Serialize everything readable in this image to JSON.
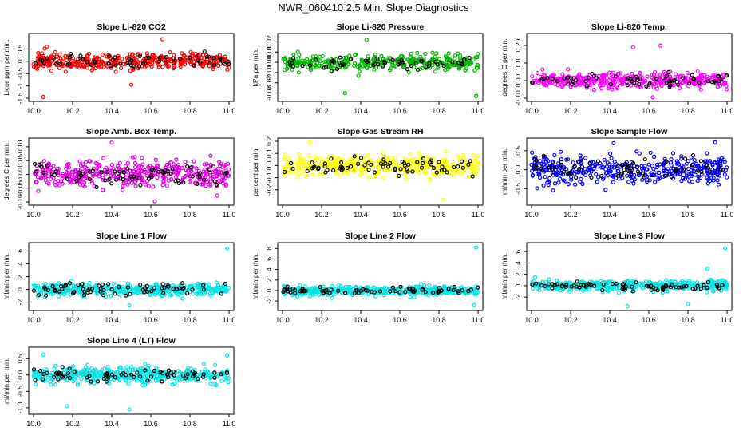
{
  "title": "NWR_060410  2.5 Min. Slope Diagnostics",
  "colors": {
    "black_points": "#000000",
    "axis": "#000000"
  },
  "chart_data": [
    {
      "type": "scatter",
      "title": "Slope Li-820 CO2",
      "ylabel": "Licor ppm per min.",
      "xlim": [
        10.0,
        11.0
      ],
      "ylim": [
        -1.5,
        1.0
      ],
      "xticks": [
        10.0,
        10.2,
        10.4,
        10.6,
        10.8,
        11.0
      ],
      "xtick_labels": [
        "10.0",
        "10.2",
        "10.4",
        "10.6",
        "10.8",
        "11.0"
      ],
      "yticks": [
        -1.5,
        -1.0,
        -0.5,
        0.0,
        0.5
      ],
      "ytick_labels": [
        "-1.5",
        "-1",
        "-0.5",
        "0",
        "0.5"
      ],
      "grid": false,
      "color": "#ff0000",
      "center": 0.0,
      "spread": 0.28,
      "count": 380,
      "seed": 11,
      "outliers": [
        [
          10.05,
          -1.45
        ],
        [
          10.66,
          0.9
        ],
        [
          10.5,
          -0.95
        ]
      ]
    },
    {
      "type": "scatter",
      "title": "Slope Li-820 Pressure",
      "ylabel": "kPa per min.",
      "xlim": [
        10.0,
        11.0
      ],
      "ylim": [
        -0.035,
        0.025
      ],
      "xticks": [
        10.0,
        10.2,
        10.4,
        10.6,
        10.8,
        11.0
      ],
      "xtick_labels": [
        "10.0",
        "10.2",
        "10.4",
        "10.6",
        "10.8",
        "11.0"
      ],
      "yticks": [
        -0.03,
        -0.02,
        -0.01,
        0.0,
        0.01,
        0.02
      ],
      "ytick_labels": [
        "-0.03",
        "-0.02",
        "-0.01",
        "0.00",
        "0.01",
        "0.02"
      ],
      "grid": false,
      "color": "#00b400",
      "center": 0.0,
      "spread": 0.006,
      "count": 340,
      "seed": 23,
      "outliers": [
        [
          10.32,
          -0.03
        ],
        [
          10.99,
          -0.033
        ],
        [
          10.43,
          0.022
        ]
      ]
    },
    {
      "type": "scatter",
      "title": "Slope Li-820 Temp.",
      "ylabel": "degrees C per min.",
      "xlim": [
        10.0,
        11.0
      ],
      "ylim": [
        -0.1,
        0.25
      ],
      "xticks": [
        10.0,
        10.2,
        10.4,
        10.6,
        10.8,
        11.0
      ],
      "xtick_labels": [
        "10.0",
        "10.2",
        "10.4",
        "10.6",
        "10.8",
        "11.0"
      ],
      "yticks": [
        -0.1,
        0.0,
        0.1,
        0.2
      ],
      "ytick_labels": [
        "-0.10",
        "0.00",
        "0.10",
        "0.20"
      ],
      "grid": false,
      "color": "#ff00ff",
      "center": 0.0,
      "spread": 0.035,
      "count": 380,
      "seed": 37,
      "outliers": [
        [
          10.62,
          -0.095
        ],
        [
          10.52,
          0.19
        ],
        [
          10.66,
          0.2
        ]
      ]
    },
    {
      "type": "scatter",
      "title": "Slope Amb. Box Temp.",
      "ylabel": "degrees C per min.",
      "xlim": [
        10.0,
        11.0
      ],
      "ylim": [
        -0.1,
        0.12
      ],
      "xticks": [
        10.0,
        10.2,
        10.4,
        10.6,
        10.8,
        11.0
      ],
      "xtick_labels": [
        "10.0",
        "10.2",
        "10.4",
        "10.6",
        "10.8",
        "11.0"
      ],
      "yticks": [
        -0.1,
        -0.05,
        0.0,
        0.05,
        0.1
      ],
      "ytick_labels": [
        "-0.10",
        "-0.05",
        "0.00",
        "0.05",
        "0.10"
      ],
      "grid": false,
      "color": "#e000e0",
      "center": 0.0,
      "spread": 0.04,
      "count": 420,
      "seed": 41,
      "outliers": [
        [
          10.4,
          0.115
        ],
        [
          10.62,
          -0.098
        ]
      ]
    },
    {
      "type": "scatter",
      "title": "Slope Gas Stream RH",
      "ylabel": "percent per min.",
      "xlim": [
        10.0,
        11.0
      ],
      "ylim": [
        -0.3,
        0.2
      ],
      "xticks": [
        10.0,
        10.2,
        10.4,
        10.6,
        10.8,
        11.0
      ],
      "xtick_labels": [
        "10.0",
        "10.2",
        "10.4",
        "10.6",
        "10.8",
        "11.0"
      ],
      "yticks": [
        -0.2,
        -0.1,
        0.0,
        0.1,
        0.2
      ],
      "ytick_labels": [
        "-0.2",
        "-0.1",
        "0.0",
        "0.1",
        "0.2"
      ],
      "grid": false,
      "color": "#ffff00",
      "center": 0.0,
      "spread": 0.07,
      "count": 420,
      "seed": 53,
      "outliers": [
        [
          10.82,
          -0.28
        ],
        [
          10.14,
          0.19
        ]
      ]
    },
    {
      "type": "scatter",
      "title": "Slope Sample Flow",
      "ylabel": "ml/min per min.",
      "xlim": [
        10.0,
        11.0
      ],
      "ylim": [
        -0.85,
        0.75
      ],
      "xticks": [
        10.0,
        10.2,
        10.4,
        10.6,
        10.8,
        11.0
      ],
      "xtick_labels": [
        "10.0",
        "10.2",
        "10.4",
        "10.6",
        "10.8",
        "11.0"
      ],
      "yticks": [
        -0.5,
        0.0,
        0.5
      ],
      "ytick_labels": [
        "-0.5",
        "0.0",
        "0.5"
      ],
      "grid": false,
      "color": "#0000ff",
      "center": 0.0,
      "spread": 0.28,
      "count": 380,
      "seed": 67,
      "outliers": [
        [
          10.42,
          0.7
        ],
        [
          10.94,
          0.72
        ]
      ]
    },
    {
      "type": "scatter",
      "title": "Slope Line 1 Flow",
      "ylabel": "ml/min per min.",
      "xlim": [
        10.0,
        11.0
      ],
      "ylim": [
        -2.8,
        6.8
      ],
      "xticks": [
        10.0,
        10.2,
        10.4,
        10.6,
        10.8,
        11.0
      ],
      "xtick_labels": [
        "10.0",
        "10.2",
        "10.4",
        "10.6",
        "10.8",
        "11.0"
      ],
      "yticks": [
        -2,
        0,
        2,
        4,
        6
      ],
      "ytick_labels": [
        "-2",
        "0",
        "2",
        "4",
        "6"
      ],
      "grid": false,
      "color": "#00e5e5",
      "center": 0.0,
      "spread": 0.75,
      "count": 420,
      "seed": 71,
      "outliers": [
        [
          10.99,
          6.4
        ],
        [
          10.49,
          -2.5
        ]
      ]
    },
    {
      "type": "scatter",
      "title": "Slope Line 2 Flow",
      "ylabel": "ml/min per min.",
      "xlim": [
        10.0,
        11.0
      ],
      "ylim": [
        -3.2,
        8.5
      ],
      "xticks": [
        10.0,
        10.2,
        10.4,
        10.6,
        10.8,
        11.0
      ],
      "xtick_labels": [
        "10.0",
        "10.2",
        "10.4",
        "10.6",
        "10.8",
        "11.0"
      ],
      "yticks": [
        -2,
        0,
        2,
        4,
        6,
        8
      ],
      "ytick_labels": [
        "-2",
        "0",
        "2",
        "4",
        "6",
        "8"
      ],
      "grid": false,
      "color": "#00e5e5",
      "center": 0.0,
      "spread": 0.7,
      "count": 420,
      "seed": 83,
      "outliers": [
        [
          10.99,
          8.2
        ],
        [
          10.98,
          -2.8
        ]
      ]
    },
    {
      "type": "scatter",
      "title": "Slope Line 3 Flow",
      "ylabel": "ml/min per min.",
      "xlim": [
        10.0,
        11.0
      ],
      "ylim": [
        -3.8,
        7.0
      ],
      "xticks": [
        10.0,
        10.2,
        10.4,
        10.6,
        10.8,
        11.0
      ],
      "xtick_labels": [
        "10.0",
        "10.2",
        "10.4",
        "10.6",
        "10.8",
        "11.0"
      ],
      "yticks": [
        -2,
        0,
        2,
        4,
        6
      ],
      "ytick_labels": [
        "-2",
        "0",
        "2",
        "4",
        "6"
      ],
      "grid": false,
      "color": "#00e5e5",
      "center": 0.0,
      "spread": 0.8,
      "count": 420,
      "seed": 97,
      "outliers": [
        [
          10.99,
          6.6
        ],
        [
          10.49,
          -3.6
        ],
        [
          10.8,
          -3.2
        ],
        [
          10.9,
          3.0
        ]
      ]
    },
    {
      "type": "scatter",
      "title": "Slope Line 4 (LT) Flow",
      "ylabel": "ml/min per min.",
      "xlim": [
        10.0,
        11.0
      ],
      "ylim": [
        -1.1,
        0.75
      ],
      "xticks": [
        10.0,
        10.2,
        10.4,
        10.6,
        10.8,
        11.0
      ],
      "xtick_labels": [
        "10.0",
        "10.2",
        "10.4",
        "10.6",
        "10.8",
        "11.0"
      ],
      "yticks": [
        -1.0,
        -0.5,
        0.0,
        0.5
      ],
      "ytick_labels": [
        "-1.0",
        "-0.5",
        "0.0",
        "0.5"
      ],
      "grid": false,
      "color": "#00e5e5",
      "center": 0.0,
      "spread": 0.2,
      "count": 420,
      "seed": 101,
      "outliers": [
        [
          10.17,
          -0.95
        ],
        [
          10.49,
          -1.05
        ],
        [
          10.05,
          0.62
        ],
        [
          10.99,
          0.6
        ]
      ]
    }
  ]
}
